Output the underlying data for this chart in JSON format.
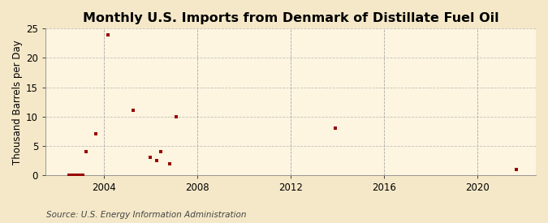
{
  "title": "Monthly U.S. Imports from Denmark of Distillate Fuel Oil",
  "ylabel": "Thousand Barrels per Day",
  "source": "Source: U.S. Energy Information Administration",
  "background_color": "#f5e8c8",
  "plot_background_color": "#fdf5e0",
  "marker_color": "#990000",
  "data_points": [
    [
      2002.5,
      0.0
    ],
    [
      2002.6,
      0.0
    ],
    [
      2002.7,
      0.0
    ],
    [
      2002.8,
      0.0
    ],
    [
      2002.9,
      0.0
    ],
    [
      2003.0,
      0.0
    ],
    [
      2003.1,
      0.0
    ],
    [
      2003.25,
      4.0
    ],
    [
      2003.67,
      7.0
    ],
    [
      2004.17,
      24.0
    ],
    [
      2005.25,
      11.0
    ],
    [
      2006.0,
      3.0
    ],
    [
      2006.25,
      2.5
    ],
    [
      2006.42,
      4.0
    ],
    [
      2006.83,
      2.0
    ],
    [
      2007.08,
      10.0
    ],
    [
      2013.92,
      8.0
    ],
    [
      2021.67,
      1.0
    ]
  ],
  "xlim": [
    2001.5,
    2022.5
  ],
  "ylim": [
    0,
    25
  ],
  "xticks": [
    2004,
    2008,
    2012,
    2016,
    2020
  ],
  "yticks": [
    0,
    5,
    10,
    15,
    20,
    25
  ],
  "grid_color": "#aaaaaa",
  "title_fontsize": 11.5,
  "label_fontsize": 8.5,
  "tick_fontsize": 8.5,
  "source_fontsize": 7.5
}
